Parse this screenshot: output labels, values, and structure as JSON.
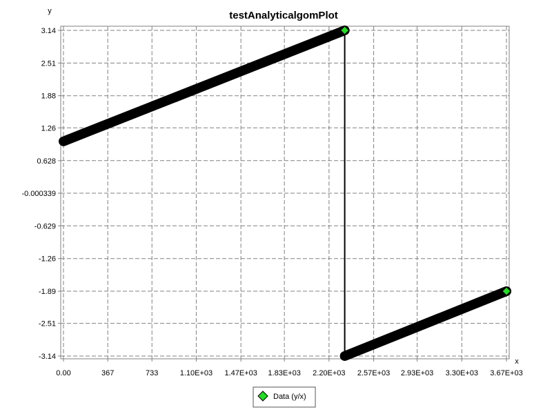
{
  "chart_data": {
    "type": "line",
    "title": "testAnalyticalgomPlot",
    "xlabel": "x",
    "ylabel": "y",
    "xlim": [
      0,
      3670
    ],
    "ylim": [
      -3.14,
      3.14
    ],
    "grid": true,
    "legend_position": "bottom",
    "x_tick_values": [
      0,
      367,
      733,
      1100,
      1470,
      1830,
      2200,
      2570,
      2930,
      3300,
      3670
    ],
    "x_tick_labels": [
      "0.00",
      "367",
      "733",
      "1.10E+03",
      "1.47E+03",
      "1.83E+03",
      "2.20E+03",
      "2.57E+03",
      "2.93E+03",
      "3.30E+03",
      "3.67E+03"
    ],
    "y_tick_values": [
      3.14,
      2.51,
      1.88,
      1.26,
      0.628,
      -0.000339,
      -0.629,
      -1.26,
      -1.89,
      -2.51,
      -3.14
    ],
    "y_tick_labels": [
      "3.14",
      "2.51",
      "1.88",
      "1.26",
      "0.628",
      "-0.000339",
      "-0.629",
      "-1.26",
      "-1.89",
      "-2.51",
      "-3.14"
    ],
    "series": [
      {
        "name": "Data (y/x)",
        "color": "#000000",
        "marker_color": "#22dd22",
        "x": [
          0,
          2330,
          2330,
          3670
        ],
        "y": [
          1.0,
          3.14,
          -3.14,
          -1.89
        ]
      }
    ],
    "markers": [
      {
        "x": 2330,
        "y": 3.14
      },
      {
        "x": 3670,
        "y": -1.89
      }
    ]
  }
}
